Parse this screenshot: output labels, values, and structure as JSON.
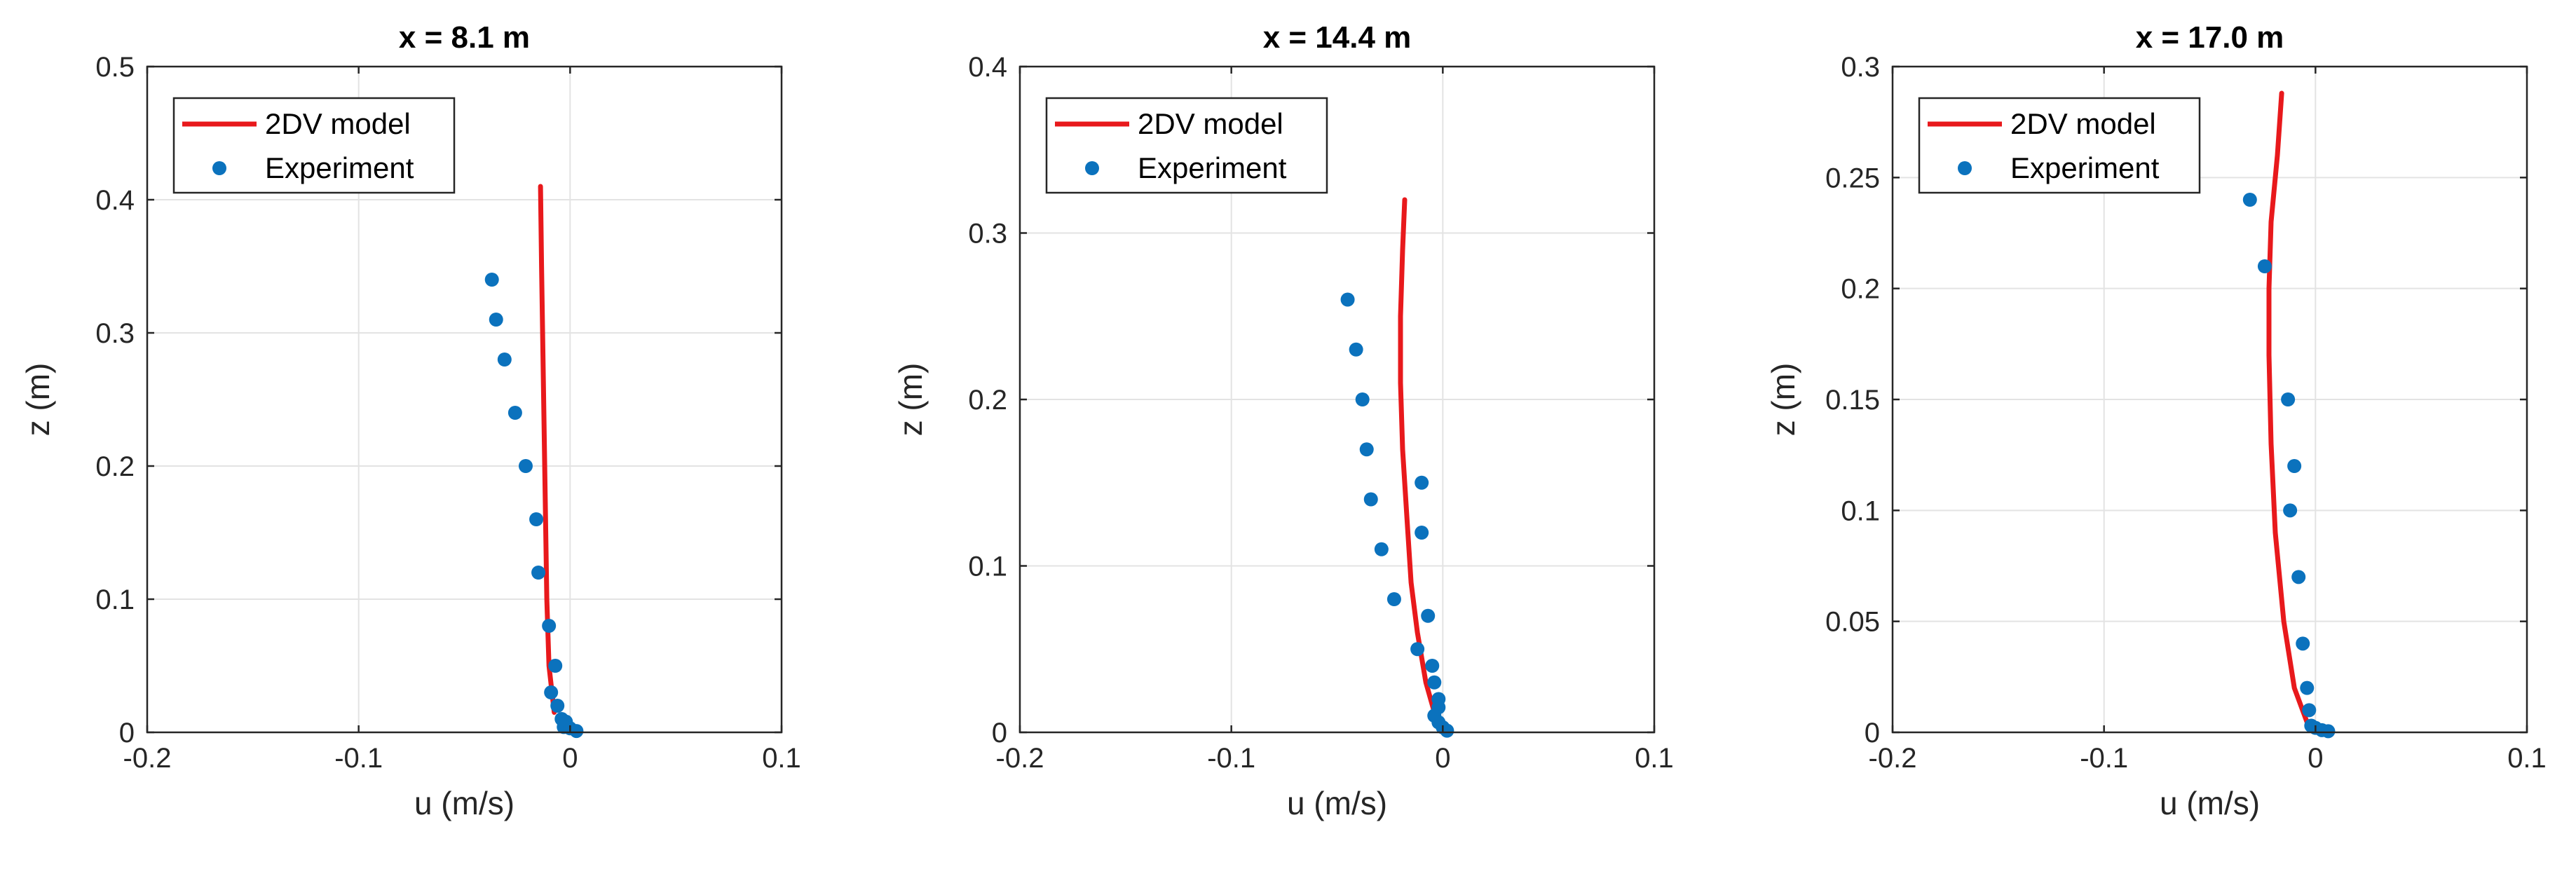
{
  "chart_data": [
    {
      "type": "line",
      "title": "x = 8.1 m",
      "xlabel": "u (m/s)",
      "ylabel": "z (m)",
      "xlim": [
        -0.2,
        0.1
      ],
      "ylim": [
        0,
        0.5
      ],
      "xticks": [
        -0.2,
        -0.1,
        0,
        0.1
      ],
      "xtick_labels": [
        "-0.2",
        "-0.1",
        "0",
        "0.1"
      ],
      "yticks": [
        0,
        0.1,
        0.2,
        0.3,
        0.4,
        0.5
      ],
      "ytick_labels": [
        "0",
        "0.1",
        "0.2",
        "0.3",
        "0.4",
        "0.5"
      ],
      "grid": true,
      "legend": {
        "position": "top-left",
        "entries": [
          "2DV model",
          "Experiment"
        ]
      },
      "colors": {
        "model": "#e8191c",
        "experiment": "#0b72bd",
        "grid": "#e3e3e3",
        "axis": "#262626"
      },
      "series": [
        {
          "name": "2DV model",
          "style": "line",
          "x": [
            -0.0075,
            -0.01,
            -0.011,
            -0.0115,
            -0.012,
            -0.0125,
            -0.013,
            -0.0135,
            -0.014
          ],
          "y": [
            0.015,
            0.05,
            0.1,
            0.15,
            0.2,
            0.25,
            0.3,
            0.35,
            0.41
          ]
        },
        {
          "name": "Experiment",
          "style": "scatter",
          "x": [
            -0.037,
            -0.035,
            -0.031,
            -0.026,
            -0.021,
            -0.016,
            -0.015,
            -0.01,
            -0.007,
            -0.009,
            -0.006,
            -0.004,
            -0.002,
            -0.003,
            0.0,
            0.003
          ],
          "y": [
            0.34,
            0.31,
            0.28,
            0.24,
            0.2,
            0.16,
            0.12,
            0.08,
            0.05,
            0.03,
            0.02,
            0.01,
            0.008,
            0.004,
            0.003,
            0.001
          ]
        }
      ]
    },
    {
      "type": "line",
      "title": "x = 14.4 m",
      "xlabel": "u (m/s)",
      "ylabel": "z (m)",
      "xlim": [
        -0.2,
        0.1
      ],
      "ylim": [
        0,
        0.4
      ],
      "xticks": [
        -0.2,
        -0.1,
        0,
        0.1
      ],
      "xtick_labels": [
        "-0.2",
        "-0.1",
        "0",
        "0.1"
      ],
      "yticks": [
        0,
        0.1,
        0.2,
        0.3,
        0.4
      ],
      "ytick_labels": [
        "0",
        "0.1",
        "0.2",
        "0.3",
        "0.4"
      ],
      "grid": true,
      "legend": {
        "position": "top-left",
        "entries": [
          "2DV model",
          "Experiment"
        ]
      },
      "colors": {
        "model": "#e8191c",
        "experiment": "#0b72bd",
        "grid": "#e3e3e3",
        "axis": "#262626"
      },
      "series": [
        {
          "name": "2DV model",
          "style": "line",
          "x": [
            -0.004,
            -0.008,
            -0.012,
            -0.015,
            -0.017,
            -0.019,
            -0.02,
            -0.02,
            -0.019,
            -0.018
          ],
          "y": [
            0.012,
            0.03,
            0.06,
            0.09,
            0.13,
            0.17,
            0.21,
            0.25,
            0.29,
            0.32
          ]
        },
        {
          "name": "Experiment",
          "style": "scatter",
          "x": [
            -0.045,
            -0.041,
            -0.038,
            -0.036,
            -0.034,
            -0.029,
            -0.023,
            -0.01,
            -0.01,
            -0.007,
            -0.012,
            -0.005,
            -0.004,
            -0.002,
            -0.002,
            -0.004,
            -0.002,
            0.0,
            0.002
          ],
          "y": [
            0.26,
            0.23,
            0.2,
            0.17,
            0.14,
            0.11,
            0.08,
            0.15,
            0.12,
            0.07,
            0.05,
            0.04,
            0.03,
            0.02,
            0.015,
            0.01,
            0.006,
            0.003,
            0.001
          ]
        }
      ]
    },
    {
      "type": "line",
      "title": "x = 17.0 m",
      "xlabel": "u (m/s)",
      "ylabel": "z (m)",
      "xlim": [
        -0.2,
        0.1
      ],
      "ylim": [
        0,
        0.3
      ],
      "xticks": [
        -0.2,
        -0.1,
        0,
        0.1
      ],
      "xtick_labels": [
        "-0.2",
        "-0.1",
        "0",
        "0.1"
      ],
      "yticks": [
        0,
        0.05,
        0.1,
        0.15,
        0.2,
        0.25,
        0.3
      ],
      "ytick_labels": [
        "0",
        "0.05",
        "0.1",
        "0.15",
        "0.2",
        "0.25",
        "0.3"
      ],
      "grid": true,
      "legend": {
        "position": "top-left",
        "entries": [
          "2DV model",
          "Experiment"
        ]
      },
      "colors": {
        "model": "#e8191c",
        "experiment": "#0b72bd",
        "grid": "#e3e3e3",
        "axis": "#262626"
      },
      "series": [
        {
          "name": "2DV model",
          "style": "line",
          "x": [
            -0.003,
            -0.01,
            -0.015,
            -0.019,
            -0.021,
            -0.022,
            -0.022,
            -0.021,
            -0.018,
            -0.016
          ],
          "y": [
            0.002,
            0.02,
            0.05,
            0.09,
            0.13,
            0.17,
            0.2,
            0.23,
            0.26,
            0.288
          ]
        },
        {
          "name": "Experiment",
          "style": "scatter",
          "x": [
            -0.031,
            -0.024,
            -0.013,
            -0.01,
            -0.012,
            -0.008,
            -0.006,
            -0.004,
            -0.003,
            -0.002,
            0.0,
            0.003,
            0.006
          ],
          "y": [
            0.24,
            0.21,
            0.15,
            0.12,
            0.1,
            0.07,
            0.04,
            0.02,
            0.01,
            0.003,
            0.002,
            0.001,
            0.0005
          ]
        }
      ]
    }
  ]
}
